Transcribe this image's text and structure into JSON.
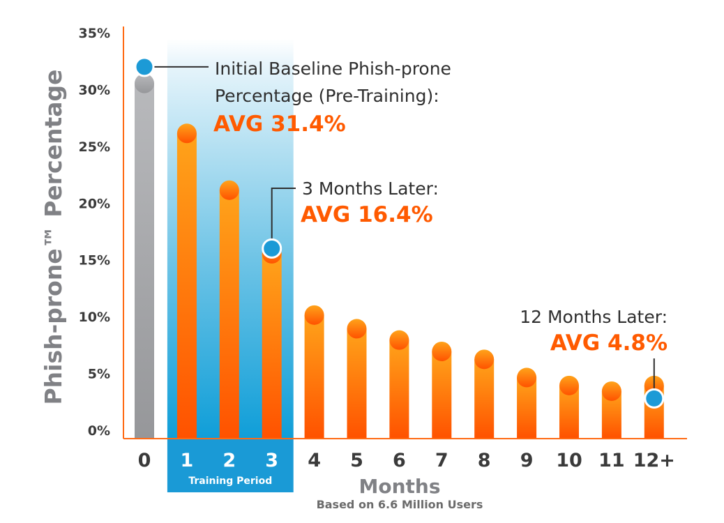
{
  "chart_data": {
    "type": "bar",
    "categories": [
      "0",
      "1",
      "2",
      "3",
      "4",
      "5",
      "6",
      "7",
      "8",
      "9",
      "10",
      "11",
      "12+"
    ],
    "values": [
      31.4,
      27,
      22,
      16.4,
      11,
      9.8,
      8.8,
      7.8,
      7.1,
      5.5,
      4.8,
      4.3,
      4.8
    ],
    "ylabel": "Phish-prone™ Percentage",
    "xlabel": "Months",
    "ylim": [
      0,
      35
    ],
    "yticks": [
      "0%",
      "5%",
      "10%",
      "15%",
      "20%",
      "25%",
      "30%",
      "35%"
    ],
    "highlight_band": {
      "label": "Training Period",
      "categories": [
        "1",
        "2",
        "3"
      ]
    },
    "markers": [
      {
        "category": "0",
        "value": 32
      },
      {
        "category": "3",
        "value": 16
      },
      {
        "category": "12+",
        "value": 2.8
      }
    ],
    "annotations": [
      {
        "lines": [
          "Initial Baseline Phish-prone",
          "Percentage (Pre-Training):"
        ],
        "avg": "AVG 31.4%"
      },
      {
        "lines": [
          "3 Months Later:"
        ],
        "avg": "AVG 16.4%"
      },
      {
        "lines": [
          "12 Months Later:"
        ],
        "avg": "AVG 4.8%"
      }
    ],
    "note": "Based on 6.6 Million Users",
    "grid": false,
    "colors": {
      "baseline_bar": "#a6a7aa",
      "bar_top": "#ffa31a",
      "bar_bottom": "#ff5200",
      "axis": "#ff6a13",
      "marker": "#1c9ad6",
      "band_top": "#e8f5fb",
      "band_bottom": "#0f9ed8",
      "avg_text": "#ff5a00"
    }
  }
}
